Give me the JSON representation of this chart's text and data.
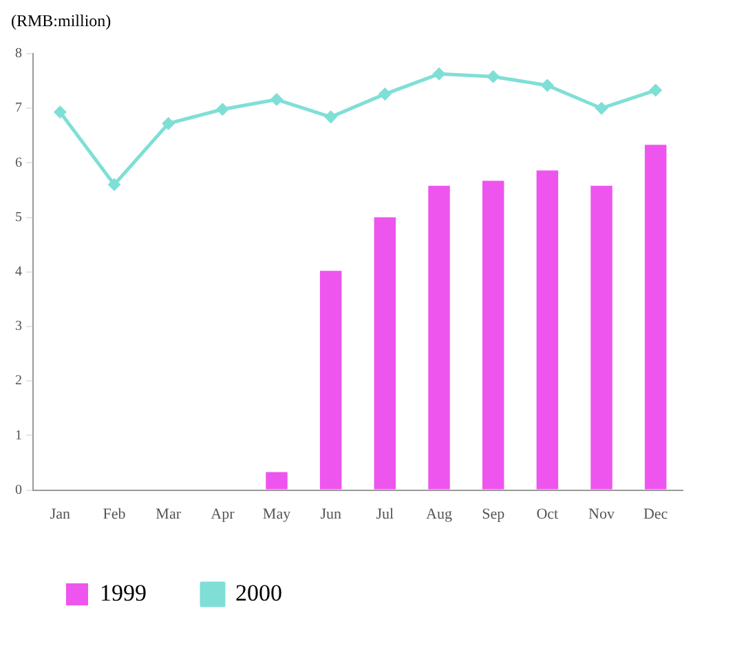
{
  "chart_data": {
    "type": "bar",
    "ylabel": "(RMB:million)",
    "categories": [
      "Jan",
      "Feb",
      "Mar",
      "Apr",
      "May",
      "Jun",
      "Jul",
      "Aug",
      "Sep",
      "Oct",
      "Nov",
      "Dec"
    ],
    "series": [
      {
        "name": "1999",
        "color": "#ee55ee",
        "values": [
          null,
          null,
          null,
          null,
          0.33,
          4.02,
          5.0,
          5.58,
          5.67,
          5.86,
          5.58,
          6.33
        ]
      },
      {
        "name": "2000",
        "type": "line",
        "color": "#7fdfd6",
        "values": [
          6.93,
          5.6,
          6.72,
          6.98,
          7.16,
          6.84,
          7.26,
          7.63,
          7.58,
          7.42,
          7.0,
          7.33
        ]
      }
    ],
    "ylim": [
      0,
      8
    ],
    "yticks": [
      0,
      1,
      2,
      3,
      4,
      5,
      6,
      7,
      8
    ],
    "grid": false,
    "legend": "bottom",
    "marker": "diamond",
    "line_style": "solid"
  }
}
